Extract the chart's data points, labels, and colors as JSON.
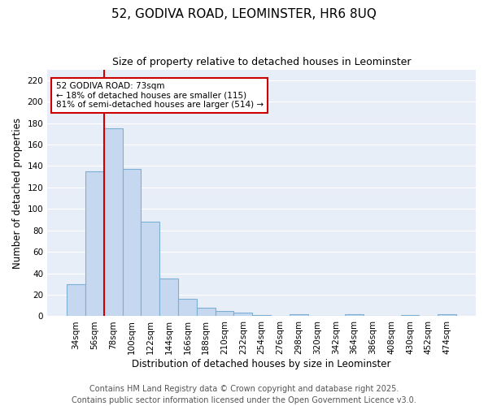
{
  "title_line1": "52, GODIVA ROAD, LEOMINSTER, HR6 8UQ",
  "title_line2": "Size of property relative to detached houses in Leominster",
  "xlabel": "Distribution of detached houses by size in Leominster",
  "ylabel": "Number of detached properties",
  "categories": [
    "34sqm",
    "56sqm",
    "78sqm",
    "100sqm",
    "122sqm",
    "144sqm",
    "166sqm",
    "188sqm",
    "210sqm",
    "232sqm",
    "254sqm",
    "276sqm",
    "298sqm",
    "320sqm",
    "342sqm",
    "364sqm",
    "386sqm",
    "408sqm",
    "430sqm",
    "452sqm",
    "474sqm"
  ],
  "values": [
    30,
    135,
    175,
    137,
    88,
    35,
    16,
    8,
    5,
    3,
    1,
    0,
    2,
    0,
    0,
    2,
    0,
    0,
    1,
    0,
    2
  ],
  "bar_color": "#c5d8f0",
  "bar_edge_color": "#7bafd4",
  "vline_x": 1.5,
  "vline_color": "#cc0000",
  "annotation_text": "52 GODIVA ROAD: 73sqm\n← 18% of detached houses are smaller (115)\n81% of semi-detached houses are larger (514) →",
  "annotation_box_facecolor": "white",
  "annotation_box_edgecolor": "#cc0000",
  "ylim": [
    0,
    230
  ],
  "yticks": [
    0,
    20,
    40,
    60,
    80,
    100,
    120,
    140,
    160,
    180,
    200,
    220
  ],
  "footer_line1": "Contains HM Land Registry data © Crown copyright and database right 2025.",
  "footer_line2": "Contains public sector information licensed under the Open Government Licence v3.0.",
  "plot_bg_color": "#e8eef8",
  "fig_bg_color": "#ffffff",
  "grid_color": "#ffffff",
  "title_fontsize": 11,
  "subtitle_fontsize": 9,
  "axis_label_fontsize": 8.5,
  "tick_fontsize": 7.5,
  "annotation_fontsize": 7.5,
  "footer_fontsize": 7
}
